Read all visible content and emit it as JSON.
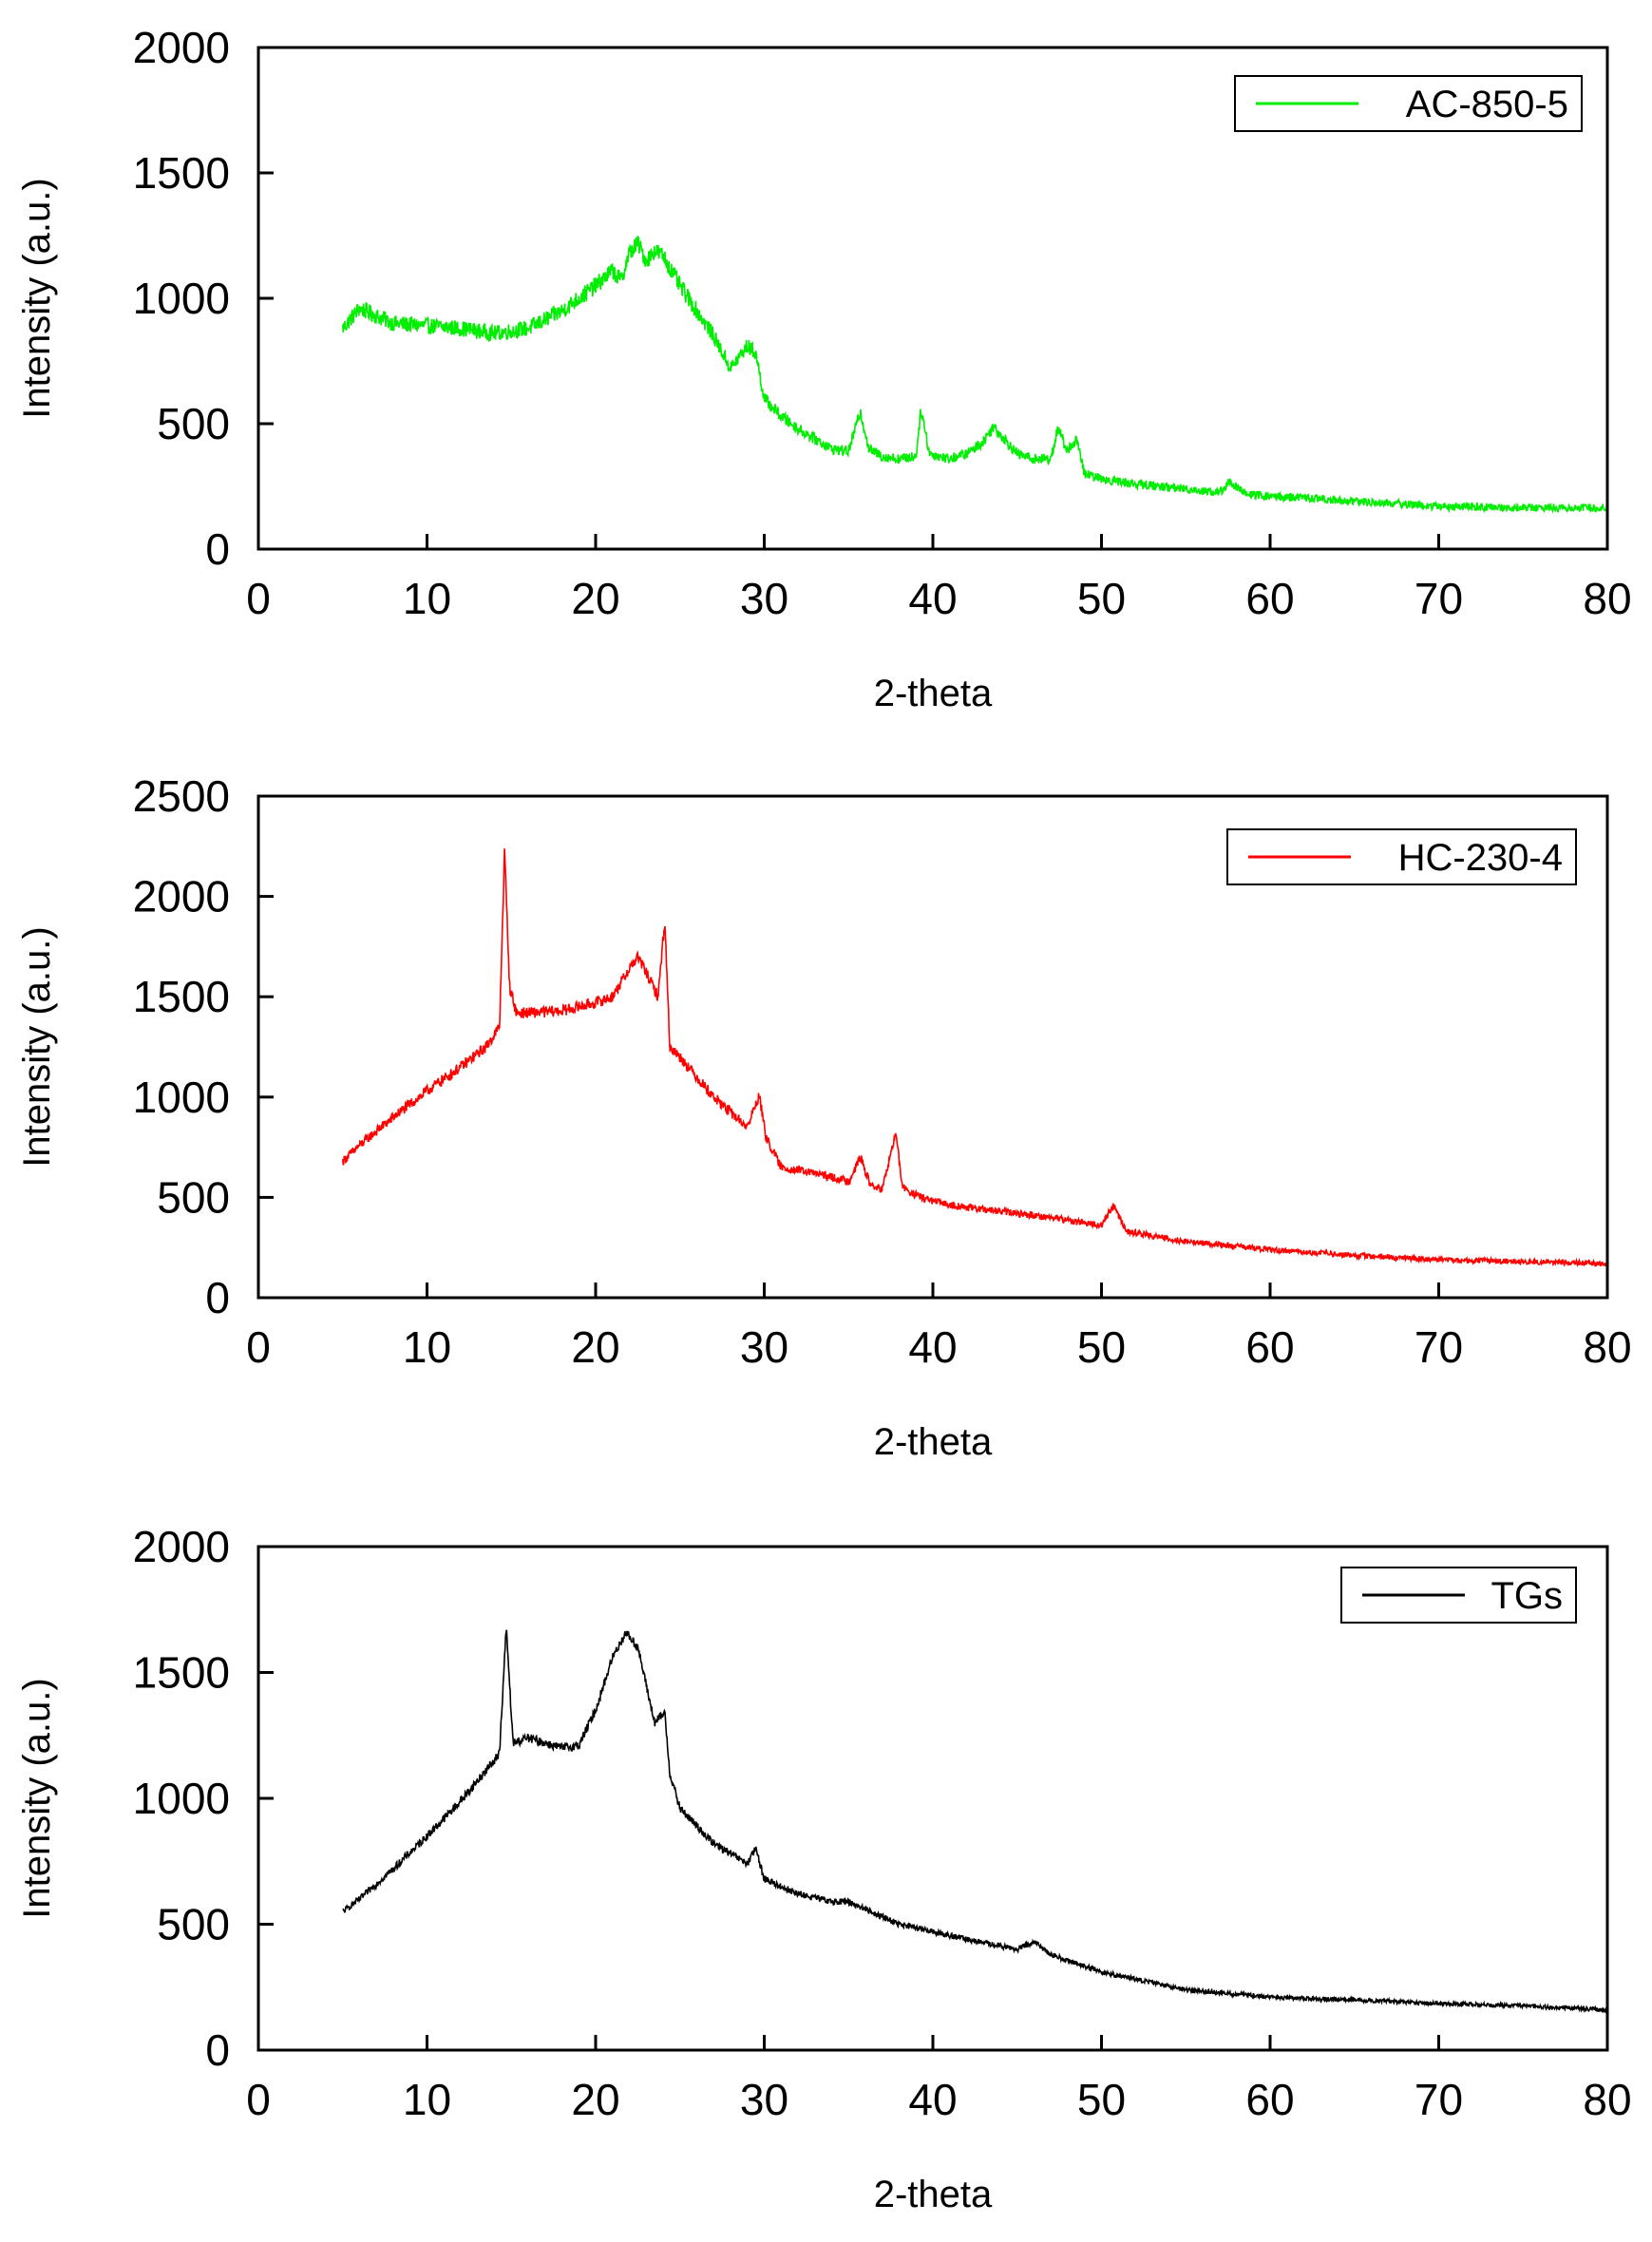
{
  "chart_data": [
    {
      "type": "line",
      "title": "",
      "xlabel": "2-theta",
      "ylabel": "Intensity (a.u.)",
      "xlim": [
        0,
        80
      ],
      "ylim": [
        0,
        2000
      ],
      "xticks": [
        0,
        10,
        20,
        30,
        40,
        50,
        60,
        70,
        80
      ],
      "yticks": [
        0,
        500,
        1000,
        1500,
        2000
      ],
      "grid": false,
      "legend_position": "top-right",
      "series": [
        {
          "name": "AC-850-5",
          "color": "#00ee00",
          "noise": 70,
          "x": [
            5,
            6,
            8,
            10,
            12,
            14,
            16,
            18,
            20,
            21,
            21.5,
            22,
            22.5,
            23,
            23.5,
            24,
            25,
            26,
            27,
            28,
            29,
            29.5,
            30,
            31,
            32,
            33,
            34,
            35,
            35.7,
            36.2,
            37,
            38,
            39,
            39.3,
            39.8,
            41,
            42,
            43,
            43.6,
            45,
            46,
            47,
            47.4,
            48,
            48.5,
            49,
            50,
            52,
            55,
            57,
            57.6,
            58.5,
            60,
            62,
            65,
            68,
            70,
            75,
            80
          ],
          "y": [
            880,
            960,
            900,
            890,
            880,
            860,
            880,
            950,
            1050,
            1110,
            1070,
            1180,
            1220,
            1150,
            1190,
            1170,
            1050,
            950,
            850,
            720,
            810,
            780,
            600,
            530,
            480,
            440,
            400,
            390,
            550,
            400,
            370,
            360,
            370,
            560,
            380,
            360,
            380,
            430,
            490,
            380,
            360,
            360,
            480,
            390,
            440,
            300,
            280,
            260,
            240,
            225,
            270,
            220,
            210,
            205,
            190,
            180,
            170,
            165,
            165
          ]
        }
      ]
    },
    {
      "type": "line",
      "title": "",
      "xlabel": "2-theta",
      "ylabel": "Intensity (a.u.)",
      "xlim": [
        0,
        80
      ],
      "ylim": [
        0,
        2500
      ],
      "xticks": [
        0,
        10,
        20,
        30,
        40,
        50,
        60,
        70,
        80
      ],
      "yticks": [
        0,
        500,
        1000,
        1500,
        2000,
        2500
      ],
      "grid": false,
      "legend_position": "top-right",
      "series": [
        {
          "name": "HC-230-4",
          "color": "#ff0000",
          "noise": 55,
          "x": [
            5,
            6,
            8,
            10,
            12,
            13.5,
            14.3,
            14.6,
            14.9,
            15.3,
            16,
            18,
            20,
            21,
            22,
            22.5,
            23,
            23.7,
            24.1,
            24.4,
            25,
            27,
            29,
            29.7,
            30.1,
            31,
            33,
            35,
            35.7,
            36.3,
            37,
            37.8,
            38.2,
            39,
            40,
            42,
            45,
            47,
            50,
            50.7,
            51.5,
            55,
            60,
            65,
            70,
            75,
            80
          ],
          "y": [
            680,
            760,
            900,
            1030,
            1150,
            1250,
            1350,
            2230,
            1550,
            1420,
            1420,
            1430,
            1470,
            1500,
            1640,
            1700,
            1620,
            1500,
            1880,
            1250,
            1200,
            1000,
            850,
            1010,
            800,
            650,
            620,
            580,
            700,
            560,
            540,
            820,
            550,
            510,
            480,
            450,
            420,
            400,
            360,
            460,
            330,
            280,
            240,
            210,
            190,
            180,
            170
          ]
        }
      ]
    },
    {
      "type": "line",
      "title": "",
      "xlabel": "2-theta",
      "ylabel": "Intensity (a.u.)",
      "xlim": [
        0,
        80
      ],
      "ylim": [
        0,
        2000
      ],
      "xticks": [
        0,
        10,
        20,
        30,
        40,
        50,
        60,
        70,
        80
      ],
      "yticks": [
        0,
        500,
        1000,
        1500,
        2000
      ],
      "grid": false,
      "legend_position": "top-right",
      "series": [
        {
          "name": "TGs",
          "color": "#000000",
          "noise": 35,
          "x": [
            5,
            6,
            8,
            10,
            12,
            13.5,
            14.3,
            14.7,
            15.1,
            16,
            18,
            19,
            20,
            21,
            21.8,
            22.5,
            23.5,
            24.1,
            24.4,
            25,
            27,
            29,
            29.5,
            30,
            32,
            34,
            35,
            38,
            40,
            42,
            45,
            46,
            47,
            50,
            55,
            60,
            65,
            70,
            75,
            80
          ],
          "y": [
            550,
            600,
            720,
            850,
            990,
            1110,
            1180,
            1680,
            1220,
            1240,
            1200,
            1210,
            1350,
            1560,
            1660,
            1600,
            1300,
            1340,
            1100,
            960,
            820,
            740,
            800,
            680,
            620,
            590,
            590,
            500,
            470,
            440,
            400,
            430,
            380,
            310,
            240,
            210,
            200,
            185,
            175,
            160
          ]
        }
      ]
    }
  ]
}
